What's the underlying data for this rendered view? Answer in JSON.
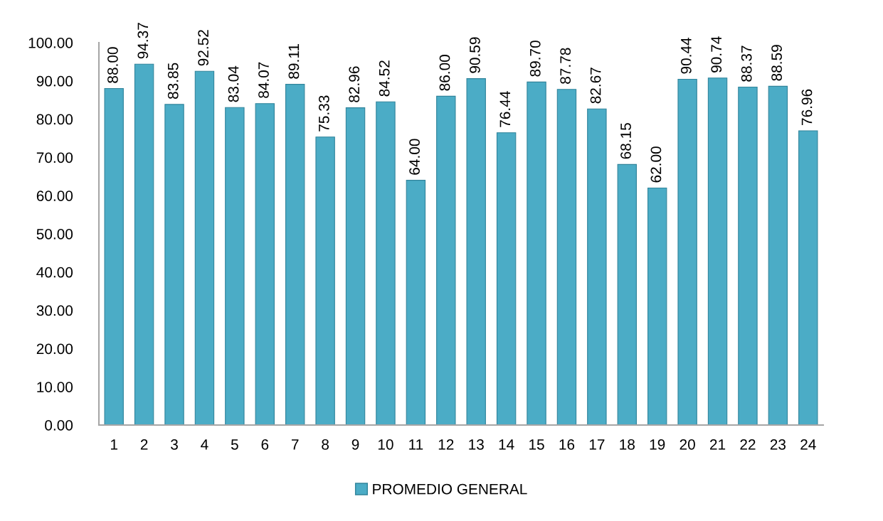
{
  "chart_data": {
    "type": "bar",
    "categories": [
      "1",
      "2",
      "3",
      "4",
      "5",
      "6",
      "7",
      "8",
      "9",
      "10",
      "11",
      "12",
      "13",
      "14",
      "15",
      "16",
      "17",
      "18",
      "19",
      "20",
      "21",
      "22",
      "23",
      "24"
    ],
    "series": [
      {
        "name": "PROMEDIO GENERAL",
        "color": "#4bacc6",
        "values": [
          88.0,
          94.37,
          83.85,
          92.52,
          83.04,
          84.07,
          89.11,
          75.33,
          82.96,
          84.52,
          64.0,
          86.0,
          90.59,
          76.44,
          89.7,
          87.78,
          82.67,
          68.15,
          62.0,
          90.44,
          90.74,
          88.37,
          88.59,
          76.96
        ],
        "value_labels": [
          "88.00",
          "94.37",
          "83.85",
          "92.52",
          "83.04",
          "84.07",
          "89.11",
          "75.33",
          "82.96",
          "84.52",
          "64.00",
          "86.00",
          "90.59",
          "76.44",
          "89.70",
          "87.78",
          "82.67",
          "68.15",
          "62.00",
          "90.44",
          "90.74",
          "88.37",
          "88.59",
          "76.96"
        ]
      }
    ],
    "ylim": [
      0,
      100
    ],
    "yticks": [
      {
        "value": 0,
        "label": "0.00"
      },
      {
        "value": 10,
        "label": "10.00"
      },
      {
        "value": 20,
        "label": "20.00"
      },
      {
        "value": 30,
        "label": "30.00"
      },
      {
        "value": 40,
        "label": "40.00"
      },
      {
        "value": 50,
        "label": "50.00"
      },
      {
        "value": 60,
        "label": "60.00"
      },
      {
        "value": 70,
        "label": "70.00"
      },
      {
        "value": 80,
        "label": "80.00"
      },
      {
        "value": 90,
        "label": "90.00"
      },
      {
        "value": 100,
        "label": "100.00"
      }
    ],
    "grid": false,
    "legend": "bottom"
  }
}
